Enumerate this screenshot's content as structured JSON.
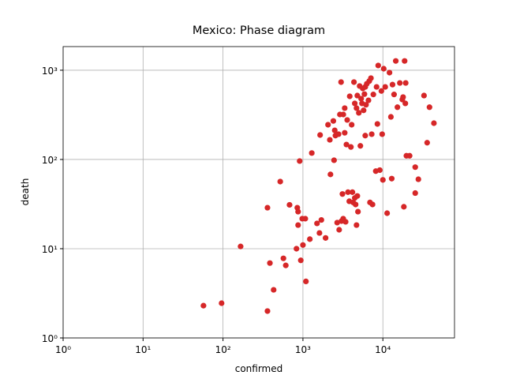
{
  "chart_data": {
    "type": "scatter",
    "title": "Mexico: Phase diagram",
    "x_label": "confirmed",
    "y_label": "death",
    "x_scale": "log",
    "y_scale": "log",
    "grid": true,
    "color": "#d62728",
    "xlim": [
      1,
      78700
    ],
    "ylim": [
      1,
      1840
    ],
    "xticks": [
      {
        "value": 1,
        "label": "10⁰"
      },
      {
        "value": 10,
        "label": "10¹"
      },
      {
        "value": 100,
        "label": "10²"
      },
      {
        "value": 1000,
        "label": "10³"
      },
      {
        "value": 10000,
        "label": "10⁴"
      }
    ],
    "yticks": [
      {
        "value": 1,
        "label": "10⁰"
      },
      {
        "value": 10,
        "label": "10¹"
      },
      {
        "value": 100,
        "label": "10²"
      },
      {
        "value": 1000,
        "label": "10³"
      }
    ],
    "x": [
      57,
      96,
      166,
      360,
      386,
      430,
      360,
      520,
      570,
      610,
      680,
      830,
      850,
      870,
      870,
      910,
      940,
      980,
      1000,
      1070,
      1090,
      1220,
      1290,
      1500,
      1610,
      1700,
      1920,
      1640,
      2060,
      2210,
      2170,
      2400,
      2450,
      2500,
      2550,
      2680,
      2790,
      2840,
      2900,
      3000,
      3040,
      3120,
      3190,
      3200,
      3330,
      3330,
      3420,
      3500,
      3580,
      3660,
      3800,
      3850,
      3980,
      4070,
      4160,
      4250,
      4350,
      4450,
      4450,
      4560,
      4680,
      4680,
      4790,
      4790,
      4880,
      5000,
      5120,
      5230,
      5350,
      5480,
      5600,
      5740,
      5880,
      6020,
      6020,
      6150,
      6290,
      6600,
      6760,
      6900,
      7090,
      7250,
      7420,
      7600,
      8150,
      8340,
      8540,
      8740,
      9150,
      9580,
      9800,
      10000,
      10250,
      10700,
      11300,
      12100,
      12600,
      12900,
      13200,
      13800,
      14500,
      15200,
      16300,
      17500,
      17900,
      18300,
      18700,
      19300,
      19100,
      19700,
      21600,
      25400,
      25400,
      27800,
      32700,
      35800,
      38300,
      43500
    ],
    "values": [
      2.3,
      2.45,
      10.6,
      2.0,
      6.9,
      3.46,
      28.8,
      56.5,
      7.8,
      6.5,
      31,
      10,
      28.8,
      26,
      18.4,
      96,
      7.4,
      21.7,
      11,
      21.7,
      4.3,
      12.8,
      118,
      19.2,
      15,
      21,
      13.2,
      188,
      245,
      68,
      166,
      270,
      98,
      212,
      185,
      19.6,
      192,
      16.3,
      319,
      736,
      20.4,
      41,
      21.7,
      319,
      199,
      376,
      20,
      147,
      277,
      43,
      34,
      510,
      138,
      245,
      43,
      33,
      736,
      425,
      37,
      31.3,
      18.4,
      376,
      39,
      520,
      26,
      333,
      665,
      142,
      480,
      425,
      625,
      355,
      540,
      650,
      185,
      410,
      705,
      460,
      755,
      33,
      815,
      192,
      31.3,
      535,
      74,
      650,
      250,
      1130,
      76,
      585,
      192,
      59,
      1040,
      650,
      25,
      940,
      300,
      61,
      690,
      535,
      1270,
      385,
      720,
      470,
      500,
      29.5,
      1270,
      720,
      425,
      110,
      110,
      82,
      42,
      60,
      520,
      154,
      385,
      255
    ]
  }
}
